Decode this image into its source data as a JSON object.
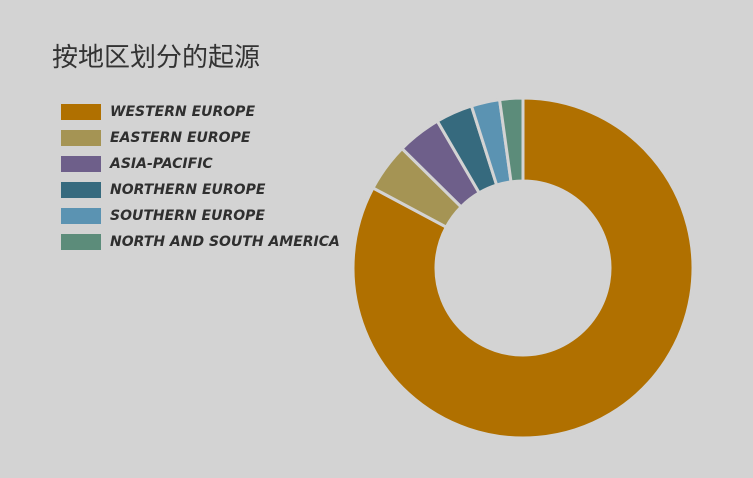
{
  "chart_data": {
    "type": "donut",
    "title": "按地区划分的起源",
    "categories": [
      "WESTERN EUROPE",
      "EASTERN EUROPE",
      "ASIA-PACIFIC",
      "NORTHERN EUROPE",
      "SOUTHERN EUROPE",
      "NORTH AND SOUTH AMERICA"
    ],
    "values": [
      82.8,
      4.6,
      4.2,
      3.5,
      2.7,
      2.2
    ],
    "colors": [
      "#b07000",
      "#a59454",
      "#6e5f8a",
      "#366a7e",
      "#5b93b2",
      "#5c8c7a"
    ]
  }
}
